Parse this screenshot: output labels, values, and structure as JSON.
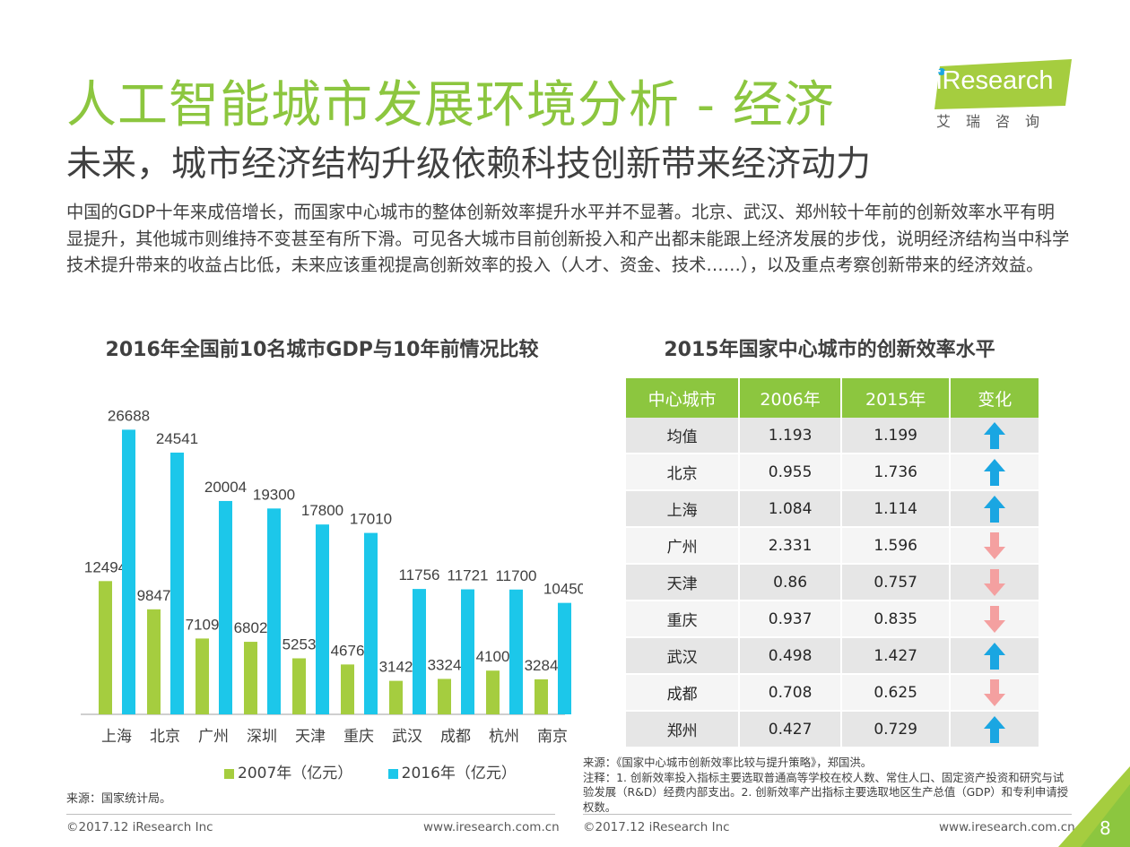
{
  "header": {
    "title": "人工智能城市发展环境分析 - 经济",
    "subtitle": "未来，城市经济结构升级依赖科技创新带来经济动力",
    "logo_text": "iResearch",
    "logo_sub": "艾瑞咨询"
  },
  "intro": "中国的GDP十年来成倍增长，而国家中心城市的整体创新效率提升水平并不显著。北京、武汉、郑州较十年前的创新效率水平有明显提升，其他城市则维持不变甚至有所下滑。可见各大城市目前创新投入和产出都未能跟上经济发展的步伐，说明经济结构当中科学技术提升带来的收益占比低，未来应该重视提高创新效率的投入（人才、资金、技术……），以及重点考察创新带来的经济效益。",
  "colors": {
    "accent_green": "#8cc63f",
    "bar_2007": "#a5cd3f",
    "bar_2016": "#1cc7ea",
    "arrow_up": "#1aa6e2",
    "arrow_down": "#f4a0a0"
  },
  "chart_data": {
    "type": "bar",
    "title": "2016年全国前10名城市GDP与10年前情况比较",
    "categories": [
      "上海",
      "北京",
      "广州",
      "深圳",
      "天津",
      "重庆",
      "武汉",
      "成都",
      "杭州",
      "南京"
    ],
    "series": [
      {
        "name": "2007年（亿元）",
        "values": [
          12494,
          9847,
          7109,
          6802,
          5253,
          4676,
          3142,
          3324,
          4100,
          3284
        ]
      },
      {
        "name": "2016年（亿元）",
        "values": [
          26688,
          24541,
          20004,
          19300,
          17800,
          17010,
          11756,
          11721,
          11700,
          10450
        ]
      }
    ],
    "legend": "bottom",
    "ylim": [
      0,
      30000
    ],
    "grid": false
  },
  "source_left": "来源：国家统计局。",
  "table": {
    "title": "2015年国家中心城市的创新效率水平",
    "headers": [
      "中心城市",
      "2006年",
      "2015年",
      "变化"
    ],
    "rows": [
      {
        "city": "均值",
        "y2006": "1.193",
        "y2015": "1.199",
        "change": "up"
      },
      {
        "city": "北京",
        "y2006": "0.955",
        "y2015": "1.736",
        "change": "up"
      },
      {
        "city": "上海",
        "y2006": "1.084",
        "y2015": "1.114",
        "change": "up"
      },
      {
        "city": "广州",
        "y2006": "2.331",
        "y2015": "1.596",
        "change": "down"
      },
      {
        "city": "天津",
        "y2006": "0.86",
        "y2015": "0.757",
        "change": "down"
      },
      {
        "city": "重庆",
        "y2006": "0.937",
        "y2015": "0.835",
        "change": "down"
      },
      {
        "city": "武汉",
        "y2006": "0.498",
        "y2015": "1.427",
        "change": "up"
      },
      {
        "city": "成都",
        "y2006": "0.708",
        "y2015": "0.625",
        "change": "down"
      },
      {
        "city": "郑州",
        "y2006": "0.427",
        "y2015": "0.729",
        "change": "up"
      }
    ]
  },
  "source_right": {
    "line1": "来源：《国家中心城市创新效率比较与提升策略》，郑国洪。",
    "line2": "注释：1. 创新效率投入指标主要选取普通高等学校在校人数、常住人口、固定资产投资和研究与试验发展（R&D）经费内部支出。2. 创新效率产出指标主要选取地区生产总值（GDP）和专利申请授权数。"
  },
  "footer": {
    "copyright_left": "©2017.12 iResearch Inc",
    "url_left": "www.iresearch.com.cn",
    "copyright_right": "©2017.12 iResearch Inc",
    "url_right": "www.iresearch.com.cn",
    "page_number": "8"
  }
}
